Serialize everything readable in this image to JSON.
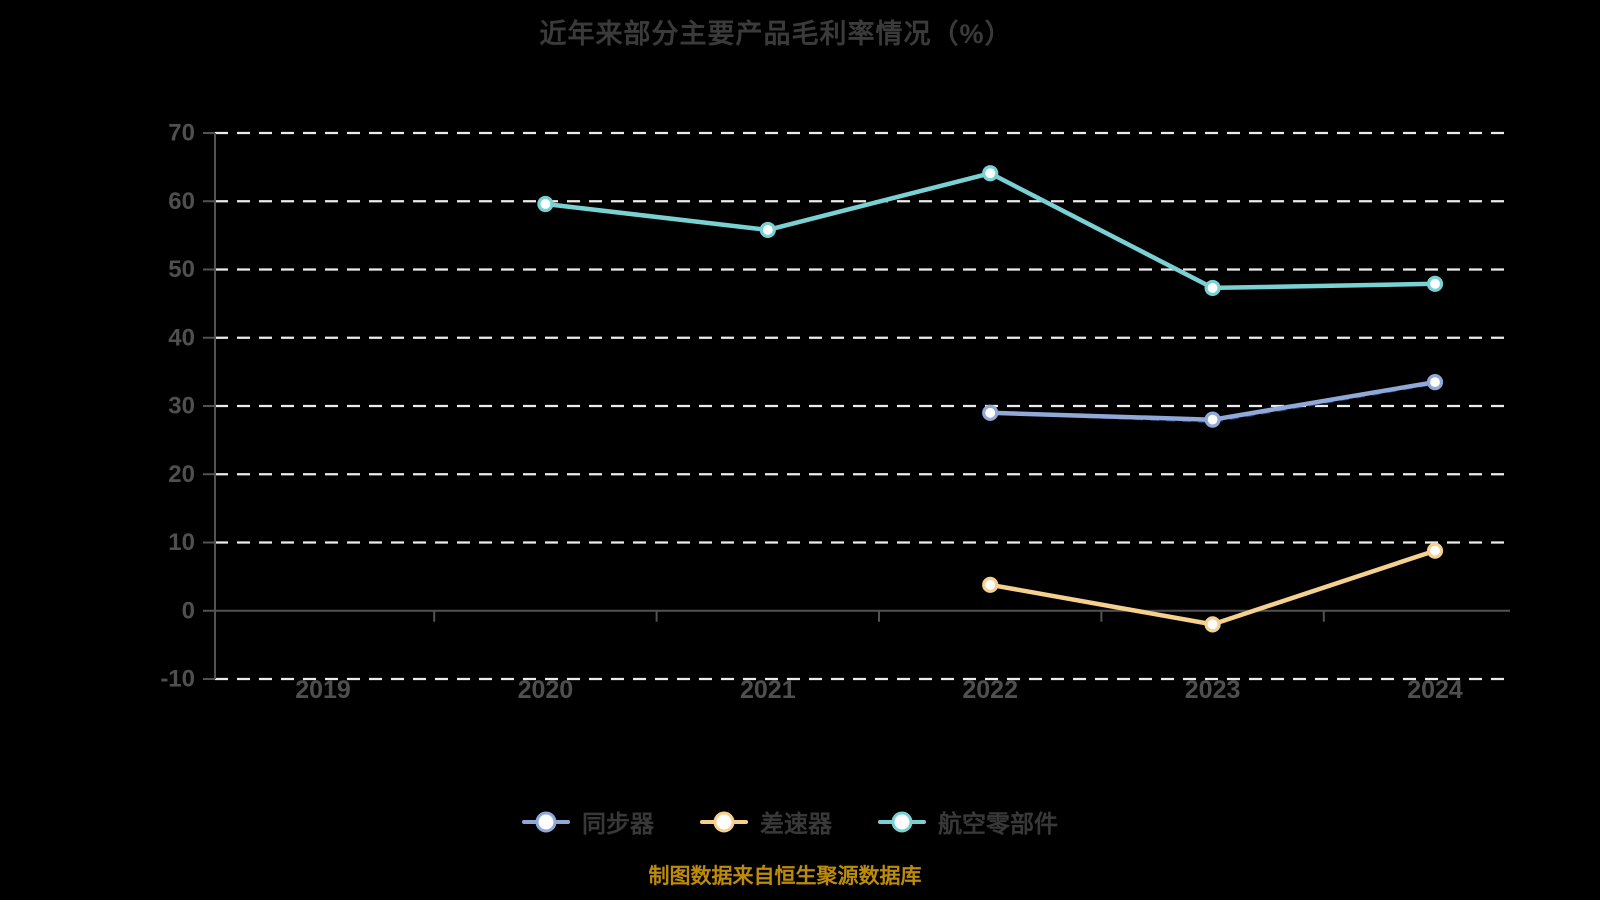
{
  "title": "近年来部分主要产品毛利率情况（%）",
  "footer_note": "制图数据来自恒生聚源数据库",
  "colors": {
    "background": "#000000",
    "title_text": "#3a3a3a",
    "axis_line": "#525252",
    "tick_label": "#4f4f4f",
    "gridline": "#ebebeb",
    "legend_text": "#383838",
    "footer_text": "#bd8b0a",
    "marker_fill": "#ffffff"
  },
  "chart_data": {
    "type": "line",
    "title": "近年来部分主要产品毛利率情况（%）",
    "categories": [
      "2019",
      "2020",
      "2021",
      "2022",
      "2023",
      "2024"
    ],
    "series": [
      {
        "name": "同步器",
        "color": "#90a9d8",
        "values": [
          null,
          null,
          null,
          29.0,
          28.0,
          33.5
        ]
      },
      {
        "name": "差速器",
        "color": "#f5d08f",
        "values": [
          null,
          null,
          null,
          3.8,
          -2.0,
          8.8
        ]
      },
      {
        "name": "航空零部件",
        "color": "#7ad1d4",
        "values": [
          null,
          59.6,
          55.8,
          64.1,
          47.3,
          47.9
        ]
      }
    ],
    "overlay_dashed_series": {
      "note": "unlabeled dark dashed line hugging 同步器 line",
      "color": "#1b3a6b",
      "values": [
        null,
        null,
        null,
        29.0,
        27.7,
        33.3
      ]
    },
    "ylabel": "",
    "xlabel": "",
    "ylim": [
      -10,
      70
    ],
    "yticks": [
      70,
      60,
      50,
      40,
      30,
      20,
      10,
      0,
      -10
    ],
    "grid": "horizontal dashed white lines",
    "x_axis_line_at_zero": true,
    "legend_position": "bottom"
  }
}
